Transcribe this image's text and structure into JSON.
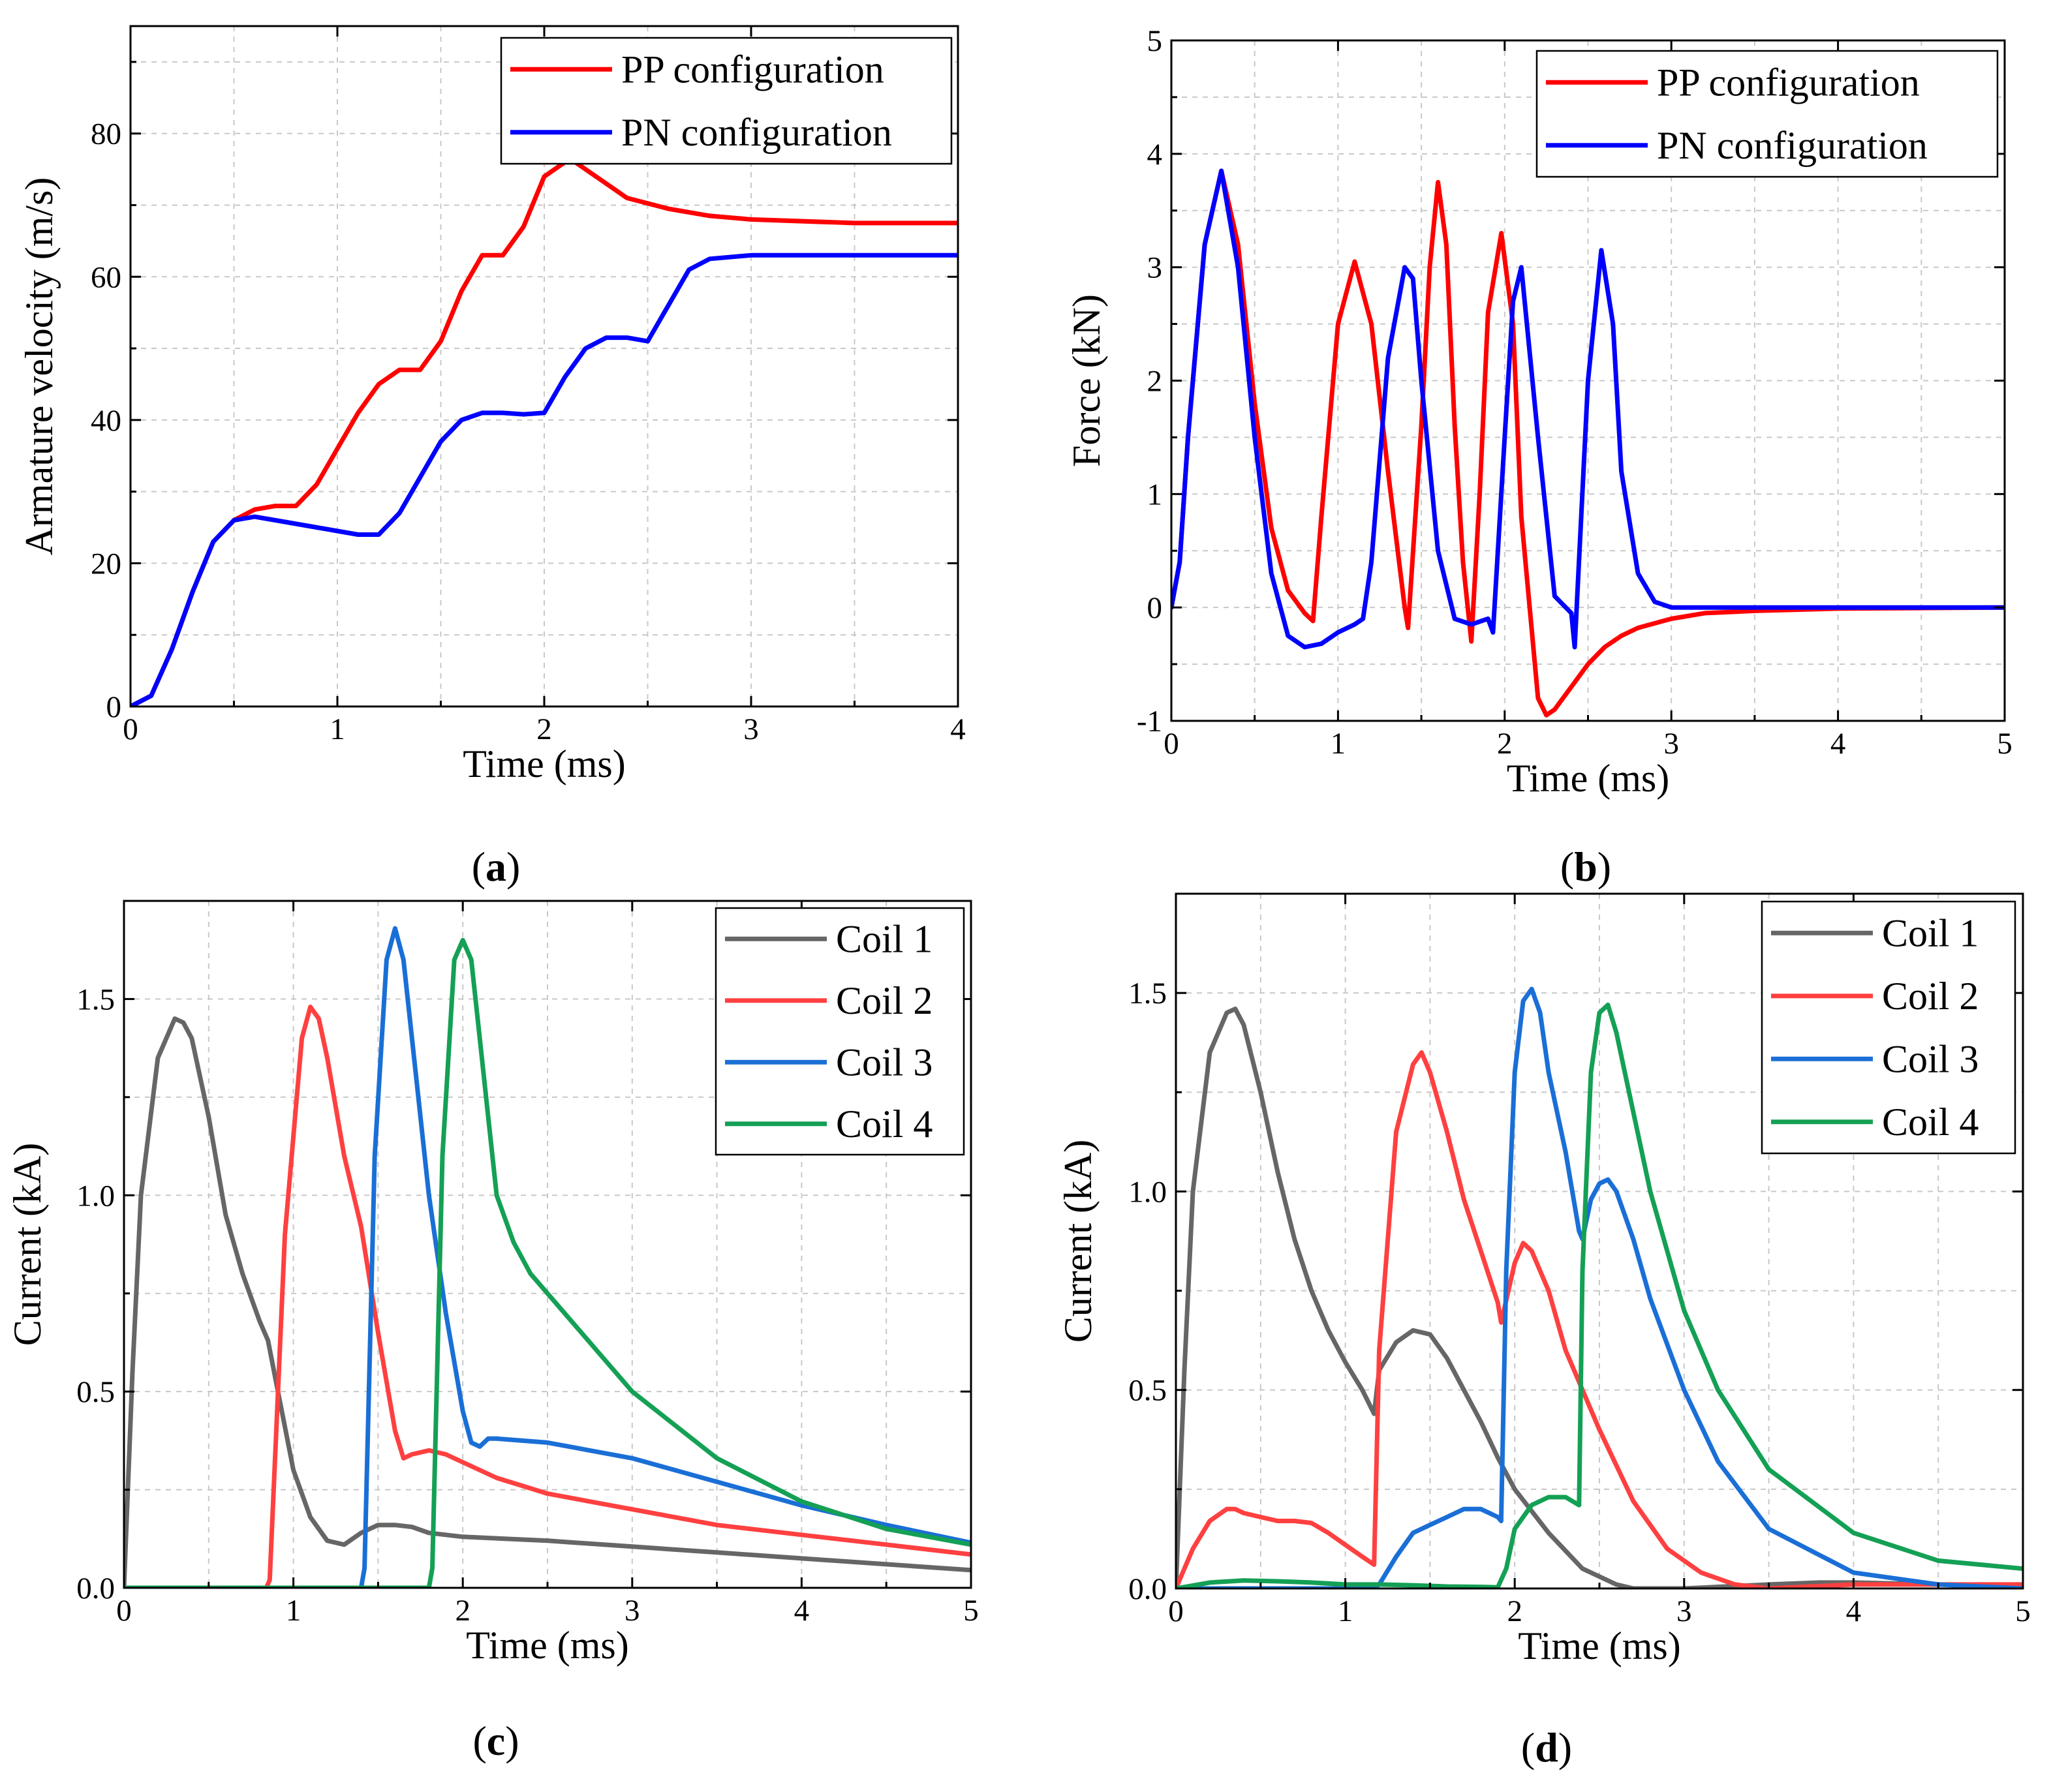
{
  "chart_data": [
    {
      "panel_label": "(a)",
      "type": "line",
      "title": "",
      "xlabel": "Time (ms)",
      "ylabel": "Armature velocity (m/s)",
      "xlim": [
        0,
        4
      ],
      "ylim": [
        0,
        95
      ],
      "xticks": [
        0,
        1,
        2,
        3,
        4
      ],
      "yticks": [
        0,
        20,
        40,
        60,
        80
      ],
      "grid": true,
      "legend_position": "top-right",
      "series": [
        {
          "name": "PP configuration",
          "color": "#ff0000",
          "x": [
            0,
            0.1,
            0.2,
            0.3,
            0.4,
            0.5,
            0.6,
            0.7,
            0.8,
            0.9,
            1.0,
            1.1,
            1.2,
            1.3,
            1.4,
            1.5,
            1.6,
            1.7,
            1.8,
            1.9,
            2.0,
            2.1,
            2.15,
            2.2,
            2.3,
            2.4,
            2.6,
            2.8,
            3.0,
            3.5,
            4.0
          ],
          "y": [
            0,
            1.5,
            8,
            16,
            23,
            26,
            27.5,
            28,
            28,
            31,
            36,
            41,
            45,
            47,
            47,
            51,
            58,
            63,
            63,
            67,
            74,
            76,
            76,
            75,
            73,
            71,
            69.5,
            68.5,
            68,
            67.5,
            67.5
          ]
        },
        {
          "name": "PN configuration",
          "color": "#0000ff",
          "x": [
            0,
            0.1,
            0.2,
            0.3,
            0.4,
            0.5,
            0.6,
            0.7,
            0.8,
            0.9,
            1.0,
            1.1,
            1.2,
            1.3,
            1.4,
            1.5,
            1.6,
            1.7,
            1.8,
            1.9,
            2.0,
            2.1,
            2.2,
            2.3,
            2.4,
            2.5,
            2.6,
            2.7,
            2.8,
            3.0,
            3.5,
            4.0
          ],
          "y": [
            0,
            1.5,
            8,
            16,
            23,
            26,
            26.5,
            26,
            25.5,
            25,
            24.5,
            24,
            24,
            27,
            32,
            37,
            40,
            41,
            41,
            40.8,
            41,
            46,
            50,
            51.5,
            51.5,
            51,
            56,
            61,
            62.5,
            63,
            63,
            63
          ]
        }
      ]
    },
    {
      "panel_label": "(b)",
      "type": "line",
      "title": "",
      "xlabel": "Time (ms)",
      "ylabel": "Force (kN)",
      "xlim": [
        0,
        5
      ],
      "ylim": [
        -1,
        5
      ],
      "xticks": [
        0,
        1,
        2,
        3,
        4,
        5
      ],
      "yticks": [
        -1,
        0,
        1,
        2,
        3,
        4,
        5
      ],
      "grid": true,
      "legend_position": "top-right",
      "series": [
        {
          "name": "PP configuration",
          "color": "#ff0000",
          "x": [
            0,
            0.05,
            0.1,
            0.2,
            0.3,
            0.4,
            0.5,
            0.6,
            0.7,
            0.8,
            0.85,
            0.9,
            1.0,
            1.1,
            1.2,
            1.3,
            1.4,
            1.42,
            1.5,
            1.55,
            1.6,
            1.65,
            1.7,
            1.75,
            1.8,
            1.85,
            1.9,
            1.98,
            2.05,
            2.1,
            2.15,
            2.2,
            2.25,
            2.3,
            2.4,
            2.5,
            2.6,
            2.7,
            2.8,
            3.0,
            3.2,
            3.5,
            4.0,
            5.0
          ],
          "y": [
            0,
            0.4,
            1.5,
            3.2,
            3.85,
            3.2,
            1.8,
            0.7,
            0.15,
            -0.05,
            -0.12,
            0.8,
            2.5,
            3.05,
            2.5,
            1.2,
            0.0,
            -0.18,
            1.6,
            3.0,
            3.75,
            3.2,
            1.6,
            0.4,
            -0.3,
            1.0,
            2.6,
            3.3,
            2.5,
            0.8,
            0.0,
            -0.8,
            -0.95,
            -0.9,
            -0.7,
            -0.5,
            -0.35,
            -0.25,
            -0.18,
            -0.1,
            -0.05,
            -0.03,
            -0.01,
            0
          ]
        },
        {
          "name": "PN configuration",
          "color": "#0000ff",
          "x": [
            0,
            0.05,
            0.1,
            0.2,
            0.3,
            0.4,
            0.5,
            0.6,
            0.7,
            0.8,
            0.9,
            1.0,
            1.1,
            1.15,
            1.2,
            1.3,
            1.4,
            1.45,
            1.5,
            1.6,
            1.7,
            1.8,
            1.9,
            1.93,
            2.0,
            2.05,
            2.1,
            2.2,
            2.3,
            2.4,
            2.42,
            2.5,
            2.58,
            2.65,
            2.7,
            2.8,
            2.9,
            3.0,
            3.2,
            4.0,
            5.0
          ],
          "y": [
            0,
            0.4,
            1.5,
            3.2,
            3.85,
            3.0,
            1.5,
            0.3,
            -0.25,
            -0.35,
            -0.32,
            -0.22,
            -0.15,
            -0.1,
            0.4,
            2.2,
            3.0,
            2.9,
            2.0,
            0.5,
            -0.1,
            -0.15,
            -0.1,
            -0.22,
            1.5,
            2.7,
            3.0,
            1.5,
            0.1,
            -0.05,
            -0.35,
            2.0,
            3.15,
            2.5,
            1.2,
            0.3,
            0.05,
            0.0,
            0,
            0,
            0
          ]
        }
      ]
    },
    {
      "panel_label": "(c)",
      "type": "line",
      "title": "",
      "xlabel": "Time (ms)",
      "ylabel": "Current (kA)",
      "xlim": [
        0,
        5
      ],
      "ylim": [
        0,
        1.75
      ],
      "xticks": [
        0,
        1,
        2,
        3,
        4,
        5
      ],
      "yticks": [
        0.0,
        0.5,
        1.0,
        1.5
      ],
      "ytick_labels": [
        "0.0",
        "0.5",
        "1.0",
        "1.5"
      ],
      "grid": true,
      "legend_position": "top-right",
      "series": [
        {
          "name": "Coil 1",
          "color": "#666666",
          "x": [
            0,
            0.05,
            0.1,
            0.2,
            0.3,
            0.35,
            0.4,
            0.5,
            0.6,
            0.7,
            0.8,
            0.85,
            0.9,
            1.0,
            1.1,
            1.2,
            1.3,
            1.4,
            1.5,
            1.6,
            1.7,
            1.8,
            2.0,
            2.5,
            3.0,
            3.5,
            4.0,
            4.5,
            5.0
          ],
          "y": [
            0,
            0.55,
            1.0,
            1.35,
            1.45,
            1.44,
            1.4,
            1.2,
            0.95,
            0.8,
            0.68,
            0.63,
            0.52,
            0.3,
            0.18,
            0.12,
            0.11,
            0.14,
            0.16,
            0.16,
            0.155,
            0.14,
            0.13,
            0.12,
            0.105,
            0.09,
            0.075,
            0.06,
            0.045
          ]
        },
        {
          "name": "Coil 2",
          "color": "#ff4040",
          "x": [
            0,
            0.84,
            0.86,
            0.95,
            1.05,
            1.1,
            1.15,
            1.2,
            1.3,
            1.4,
            1.5,
            1.6,
            1.65,
            1.7,
            1.8,
            1.9,
            2.0,
            2.2,
            2.5,
            3.0,
            3.5,
            4.0,
            4.5,
            5.0
          ],
          "y": [
            0,
            0,
            0.02,
            0.9,
            1.4,
            1.48,
            1.45,
            1.35,
            1.1,
            0.92,
            0.65,
            0.4,
            0.33,
            0.34,
            0.35,
            0.34,
            0.32,
            0.28,
            0.24,
            0.2,
            0.16,
            0.135,
            0.11,
            0.085
          ]
        },
        {
          "name": "Coil 3",
          "color": "#1a6fd6",
          "x": [
            0,
            1.4,
            1.42,
            1.48,
            1.55,
            1.6,
            1.65,
            1.7,
            1.8,
            1.9,
            2.0,
            2.05,
            2.1,
            2.15,
            2.2,
            2.5,
            3.0,
            3.5,
            4.0,
            4.5,
            5.0
          ],
          "y": [
            0,
            0,
            0.05,
            1.1,
            1.6,
            1.68,
            1.6,
            1.4,
            1.0,
            0.7,
            0.45,
            0.37,
            0.36,
            0.38,
            0.38,
            0.37,
            0.33,
            0.27,
            0.21,
            0.16,
            0.115
          ]
        },
        {
          "name": "Coil 4",
          "color": "#14a055",
          "x": [
            0,
            1.8,
            1.82,
            1.88,
            1.95,
            2.0,
            2.05,
            2.1,
            2.15,
            2.2,
            2.3,
            2.4,
            2.6,
            2.8,
            3.0,
            3.5,
            4.0,
            4.5,
            5.0
          ],
          "y": [
            0,
            0,
            0.05,
            1.1,
            1.6,
            1.65,
            1.6,
            1.4,
            1.2,
            1.0,
            0.88,
            0.8,
            0.7,
            0.6,
            0.5,
            0.33,
            0.22,
            0.15,
            0.11
          ]
        }
      ]
    },
    {
      "panel_label": "(d)",
      "type": "line",
      "title": "",
      "xlabel": "Time (ms)",
      "ylabel": "Current (kA)",
      "xlim": [
        0,
        5
      ],
      "ylim": [
        0,
        1.75
      ],
      "xticks": [
        0,
        1,
        2,
        3,
        4,
        5
      ],
      "yticks": [
        0.0,
        0.5,
        1.0,
        1.5
      ],
      "ytick_labels": [
        "0.0",
        "0.5",
        "1.0",
        "1.5"
      ],
      "grid": true,
      "legend_position": "top-right",
      "series": [
        {
          "name": "Coil 1",
          "color": "#666666",
          "x": [
            0,
            0.05,
            0.1,
            0.2,
            0.3,
            0.35,
            0.4,
            0.5,
            0.6,
            0.7,
            0.8,
            0.9,
            1.0,
            1.1,
            1.17,
            1.2,
            1.3,
            1.4,
            1.5,
            1.6,
            1.7,
            1.8,
            1.9,
            2.0,
            2.2,
            2.4,
            2.6,
            2.7,
            3.0,
            3.5,
            3.8,
            4.0,
            4.5,
            5.0
          ],
          "y": [
            0,
            0.55,
            1.0,
            1.35,
            1.45,
            1.46,
            1.42,
            1.25,
            1.05,
            0.88,
            0.75,
            0.65,
            0.57,
            0.5,
            0.44,
            0.55,
            0.62,
            0.65,
            0.64,
            0.58,
            0.5,
            0.42,
            0.33,
            0.25,
            0.14,
            0.05,
            0.01,
            0,
            0,
            0.01,
            0.015,
            0.015,
            0.01,
            0.005
          ]
        },
        {
          "name": "Coil 2",
          "color": "#ff4040",
          "x": [
            0,
            0.1,
            0.2,
            0.3,
            0.35,
            0.4,
            0.5,
            0.6,
            0.7,
            0.8,
            0.9,
            1.0,
            1.1,
            1.17,
            1.2,
            1.3,
            1.4,
            1.45,
            1.5,
            1.6,
            1.7,
            1.8,
            1.9,
            1.92,
            2.0,
            2.05,
            2.1,
            2.2,
            2.3,
            2.5,
            2.7,
            2.9,
            3.1,
            3.3,
            3.5,
            4.0,
            5.0
          ],
          "y": [
            0,
            0.1,
            0.17,
            0.2,
            0.2,
            0.19,
            0.18,
            0.17,
            0.17,
            0.165,
            0.14,
            0.11,
            0.08,
            0.06,
            0.6,
            1.15,
            1.32,
            1.35,
            1.3,
            1.15,
            0.98,
            0.85,
            0.72,
            0.67,
            0.82,
            0.87,
            0.85,
            0.75,
            0.6,
            0.4,
            0.22,
            0.1,
            0.04,
            0.01,
            0,
            0.01,
            0.01
          ]
        },
        {
          "name": "Coil 3",
          "color": "#1a6fd6",
          "x": [
            0,
            1.17,
            1.2,
            1.3,
            1.4,
            1.5,
            1.6,
            1.7,
            1.8,
            1.9,
            1.92,
            1.95,
            2.0,
            2.05,
            2.1,
            2.15,
            2.2,
            2.3,
            2.38,
            2.4,
            2.45,
            2.5,
            2.55,
            2.6,
            2.7,
            2.8,
            3.0,
            3.2,
            3.5,
            4.0,
            4.5,
            5.0
          ],
          "y": [
            0,
            0,
            0.01,
            0.08,
            0.14,
            0.16,
            0.18,
            0.2,
            0.2,
            0.18,
            0.17,
            0.8,
            1.3,
            1.48,
            1.51,
            1.45,
            1.3,
            1.1,
            0.9,
            0.88,
            0.98,
            1.02,
            1.03,
            1.0,
            0.88,
            0.73,
            0.5,
            0.32,
            0.15,
            0.04,
            0.01,
            0
          ]
        },
        {
          "name": "Coil 4",
          "color": "#14a055",
          "x": [
            0,
            0.2,
            0.4,
            0.6,
            0.8,
            1.0,
            1.2,
            1.4,
            1.6,
            1.8,
            1.9,
            1.95,
            2.0,
            2.1,
            2.2,
            2.3,
            2.38,
            2.4,
            2.45,
            2.5,
            2.55,
            2.6,
            2.65,
            2.7,
            2.8,
            3.0,
            3.2,
            3.5,
            4.0,
            4.5,
            5.0
          ],
          "y": [
            0,
            0.015,
            0.02,
            0.018,
            0.015,
            0.01,
            0.01,
            0.008,
            0.005,
            0.004,
            0.003,
            0.05,
            0.15,
            0.21,
            0.23,
            0.23,
            0.21,
            0.8,
            1.3,
            1.45,
            1.47,
            1.4,
            1.3,
            1.2,
            1.0,
            0.7,
            0.5,
            0.3,
            0.14,
            0.07,
            0.05
          ]
        }
      ]
    }
  ]
}
